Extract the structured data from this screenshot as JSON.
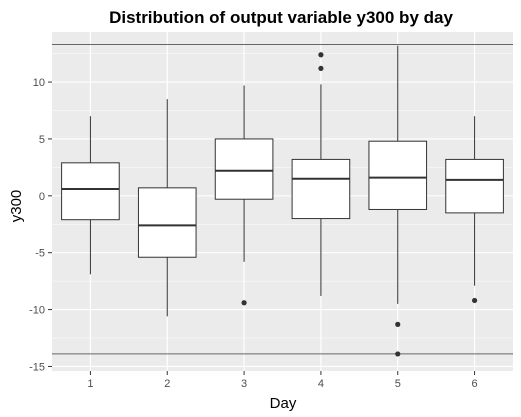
{
  "chart_data": {
    "type": "boxplot",
    "title": "Distribution of output variable y300 by day",
    "xlabel": "Day",
    "ylabel": "y300",
    "categories": [
      "1",
      "2",
      "3",
      "4",
      "5",
      "6"
    ],
    "yticks": [
      -15,
      -10,
      -5,
      0,
      5,
      10
    ],
    "ylim": [
      -15.4,
      14.4
    ],
    "boxes": [
      {
        "category": "1",
        "whisker_low": -6.9,
        "q1": -2.1,
        "median": 0.6,
        "q3": 2.9,
        "whisker_high": 7.0,
        "outliers": []
      },
      {
        "category": "2",
        "whisker_low": -10.6,
        "q1": -5.4,
        "median": -2.6,
        "q3": 0.7,
        "whisker_high": 8.5,
        "outliers": []
      },
      {
        "category": "3",
        "whisker_low": -5.8,
        "q1": -0.3,
        "median": 2.2,
        "q3": 5.0,
        "whisker_high": 9.7,
        "outliers": [
          -9.4
        ]
      },
      {
        "category": "4",
        "whisker_low": -8.8,
        "q1": -2.0,
        "median": 1.5,
        "q3": 3.2,
        "whisker_high": 9.8,
        "outliers": [
          11.2,
          12.4
        ]
      },
      {
        "category": "5",
        "whisker_low": -9.5,
        "q1": -1.2,
        "median": 1.6,
        "q3": 4.8,
        "whisker_high": 13.2,
        "outliers": [
          -11.3,
          -13.9
        ]
      },
      {
        "category": "6",
        "whisker_low": -7.9,
        "q1": -1.5,
        "median": 1.4,
        "q3": 3.2,
        "whisker_high": 7.0,
        "outliers": [
          -9.2
        ]
      }
    ],
    "reference_lines": [
      13.3,
      -13.9
    ],
    "grid": true,
    "colors": {
      "panel_background": "#ebebeb",
      "grid_major": "#ffffff",
      "box_fill": "#ffffff",
      "box_stroke": "#333333",
      "reference_line": "#666666",
      "outlier": "#333333"
    }
  }
}
